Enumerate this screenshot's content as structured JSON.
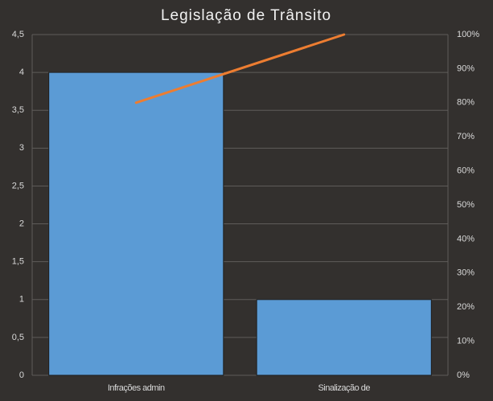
{
  "chart_data": {
    "type": "bar",
    "title": "Legislação de Trânsito",
    "categories": [
      "Infrações admin",
      "Sinalização de"
    ],
    "series": [
      {
        "color": "#5b9bd5",
        "values": [
          4,
          1
        ]
      },
      {
        "type": "line",
        "axis": "y2",
        "color": "#ed7d31",
        "values": [
          80,
          100
        ]
      }
    ],
    "ylim": [
      0,
      4.5
    ],
    "yticks": [
      0,
      {
        "value": 0.5,
        "label": "0,5"
      },
      1,
      {
        "value": 1.5,
        "label": "1,5"
      },
      2,
      {
        "value": 2.5,
        "label": "2,5"
      },
      3,
      {
        "value": 3.5,
        "label": "3,5"
      },
      4,
      {
        "value": 4.5,
        "label": "4,5"
      }
    ],
    "y2lim": [
      0,
      100
    ],
    "y2ticks": [
      {
        "value": 0,
        "label": "0%"
      },
      {
        "value": 10,
        "label": "10%"
      },
      {
        "value": 20,
        "label": "20%"
      },
      {
        "value": 30,
        "label": "30%"
      },
      {
        "value": 40,
        "label": "40%"
      },
      {
        "value": 50,
        "label": "50%"
      },
      {
        "value": 60,
        "label": "60%"
      },
      {
        "value": 70,
        "label": "70%"
      },
      {
        "value": 80,
        "label": "80%"
      },
      {
        "value": 90,
        "label": "90%"
      },
      {
        "value": 100,
        "label": "100%"
      }
    ],
    "grid": true
  }
}
